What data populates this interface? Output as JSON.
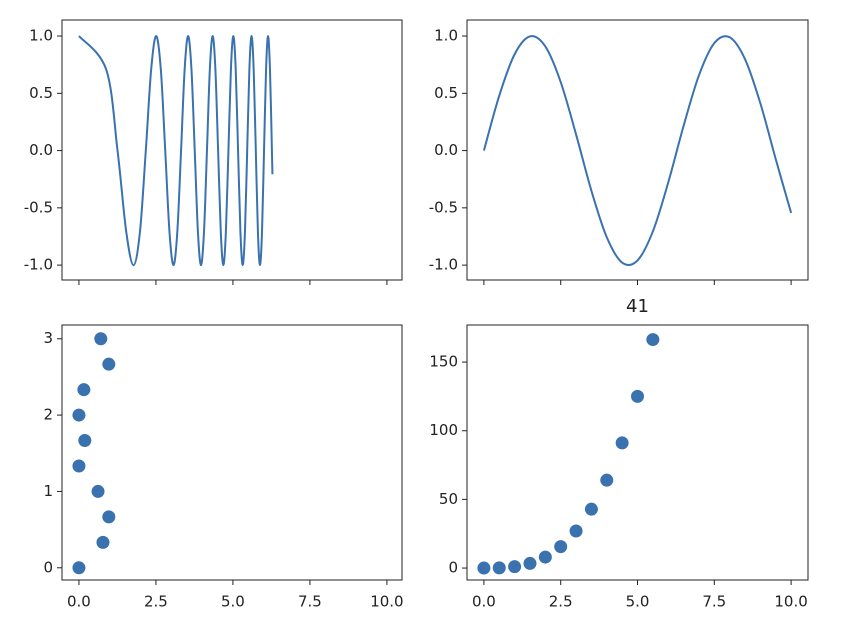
{
  "chart_data": [
    {
      "type": "line",
      "color": "#3a72b0",
      "x": [
        0,
        0.886,
        1.253,
        1.535,
        1.772,
        1.982,
        2.171,
        2.345,
        2.507,
        2.659,
        2.802,
        2.939,
        3.07,
        3.195,
        3.316,
        3.432,
        3.545,
        3.654,
        3.76,
        3.863,
        3.963,
        4.061,
        4.157,
        4.25,
        4.342,
        4.431,
        4.519,
        4.605,
        4.689,
        4.772,
        4.854,
        4.934,
        5.013,
        5.091,
        5.167,
        5.243,
        5.317,
        5.391,
        5.463,
        5.534,
        5.605,
        5.674,
        5.743,
        5.811,
        5.878,
        5.945,
        6.01,
        6.076,
        6.14,
        6.203,
        6.266,
        6.283
      ],
      "values": [
        1,
        0.707,
        0,
        -0.707,
        -1,
        -0.707,
        0,
        0.707,
        1,
        0.707,
        0,
        -0.707,
        -1,
        -0.707,
        0,
        0.707,
        1,
        0.707,
        0,
        -0.707,
        -1,
        -0.707,
        0,
        0.707,
        1,
        0.707,
        0,
        -0.707,
        -1,
        -0.707,
        0,
        0.707,
        1,
        0.707,
        0,
        -0.707,
        -1,
        -0.707,
        0,
        0.707,
        1,
        0.707,
        0,
        -0.707,
        -1,
        -0.707,
        0,
        0.707,
        1,
        0.707,
        0,
        -0.207
      ],
      "xlim": [
        -0.55,
        10.49
      ],
      "ylim": [
        -1.13,
        1.14
      ],
      "xticks": [
        0,
        2.5,
        5,
        7.5,
        10
      ],
      "xticklabels": false,
      "yticks": [
        {
          "value": -1,
          "label": "-1.0"
        },
        -0.5,
        {
          "value": 0,
          "label": "0.0"
        },
        0.5,
        {
          "value": 1,
          "label": "1.0"
        }
      ]
    },
    {
      "type": "line",
      "color": "#3a72b0",
      "x": [
        0,
        0.5,
        1,
        1.5,
        2,
        2.5,
        3,
        3.5,
        4,
        4.5,
        5,
        5.5,
        6,
        6.5,
        7,
        7.5,
        8,
        8.5,
        9,
        9.5,
        10
      ],
      "values": [
        0,
        0.479,
        0.841,
        0.997,
        0.909,
        0.598,
        0.141,
        -0.351,
        -0.757,
        -0.978,
        -0.959,
        -0.706,
        -0.279,
        0.215,
        0.657,
        0.938,
        0.989,
        0.798,
        0.412,
        -0.075,
        -0.544
      ],
      "xlim": [
        -0.55,
        10.55
      ],
      "ylim": [
        -1.13,
        1.14
      ],
      "xticks": [
        0,
        2.5,
        5,
        7.5,
        10
      ],
      "xticklabels": false,
      "yticks": [
        {
          "value": -1,
          "label": "-1.0"
        },
        -0.5,
        {
          "value": 0,
          "label": "0.0"
        },
        0.5,
        {
          "value": 1,
          "label": "1.0"
        }
      ]
    },
    {
      "type": "scatter",
      "color": "#3a72b0",
      "x": [
        0,
        0.78,
        0.97,
        0.62,
        0,
        0.19,
        0,
        0.16,
        0.97,
        0.71
      ],
      "values": [
        0,
        0.333,
        0.667,
        1,
        1.333,
        1.667,
        2,
        2.333,
        2.667,
        3
      ],
      "xlim": [
        -0.55,
        10.49
      ],
      "ylim": [
        -0.16,
        3.18
      ],
      "xticks": [
        {
          "value": 0,
          "label": "0.0"
        },
        2.5,
        {
          "value": 5,
          "label": "5.0"
        },
        7.5,
        {
          "value": 10,
          "label": "10.0"
        }
      ],
      "yticks": [
        0,
        1,
        2,
        3
      ]
    },
    {
      "type": "scatter",
      "color": "#3a72b0",
      "title": "41",
      "x": [
        0,
        0.5,
        1,
        1.5,
        2,
        2.5,
        3,
        3.5,
        4,
        4.5,
        5,
        5.5
      ],
      "values": [
        0,
        0.125,
        1,
        3.375,
        8,
        15.625,
        27,
        42.875,
        64,
        91.125,
        125,
        166.375
      ],
      "xlim": [
        -0.55,
        10.55
      ],
      "ylim": [
        -8.7,
        177
      ],
      "xticks": [
        {
          "value": 0,
          "label": "0.0"
        },
        2.5,
        {
          "value": 5,
          "label": "5.0"
        },
        7.5,
        {
          "value": 10,
          "label": "10.0"
        }
      ],
      "yticks": [
        0,
        50,
        100,
        150
      ]
    }
  ]
}
